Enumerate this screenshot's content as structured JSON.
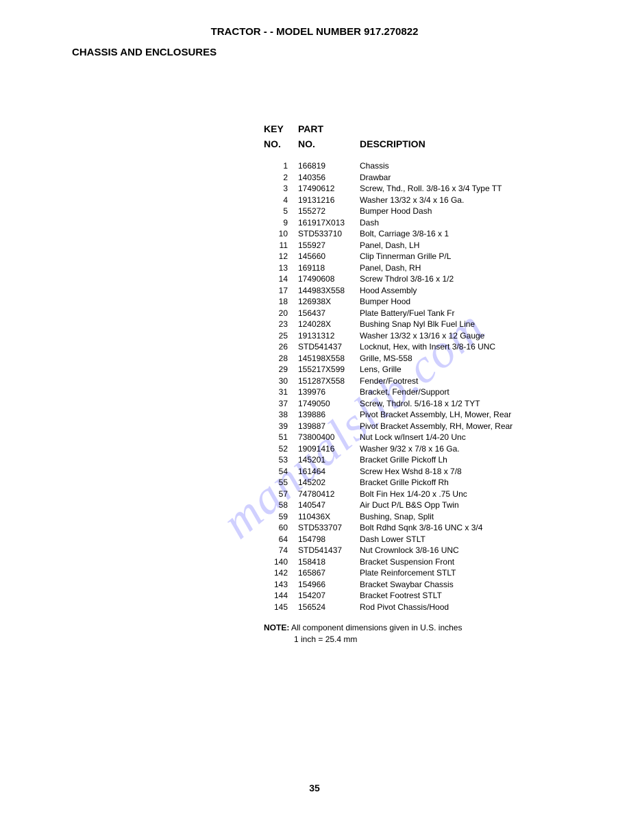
{
  "header": {
    "title": "TRACTOR - - MODEL NUMBER 917.270822",
    "section": "CHASSIS AND ENCLOSURES"
  },
  "table": {
    "headers": {
      "key1": "KEY",
      "key2": "NO.",
      "part1": "PART",
      "part2": "NO.",
      "desc": "DESCRIPTION"
    },
    "rows": [
      {
        "key": "1",
        "part": "166819",
        "desc": "Chassis"
      },
      {
        "key": "2",
        "part": "140356",
        "desc": "Drawbar"
      },
      {
        "key": "3",
        "part": "17490612",
        "desc": "Screw, Thd., Roll. 3/8-16 x 3/4 Type TT"
      },
      {
        "key": "4",
        "part": "19131216",
        "desc": "Washer 13/32 x 3/4 x 16 Ga."
      },
      {
        "key": "5",
        "part": "155272",
        "desc": "Bumper Hood Dash"
      },
      {
        "key": "9",
        "part": "161917X013",
        "desc": "Dash"
      },
      {
        "key": "10",
        "part": "STD533710",
        "desc": "Bolt, Carriage 3/8-16 x 1"
      },
      {
        "key": "11",
        "part": "155927",
        "desc": "Panel, Dash, LH"
      },
      {
        "key": "12",
        "part": "145660",
        "desc": "Clip Tinnerman Grille P/L"
      },
      {
        "key": "13",
        "part": "169118",
        "desc": "Panel, Dash, RH"
      },
      {
        "key": "14",
        "part": "17490608",
        "desc": "Screw Thdrol 3/8-16 x 1/2"
      },
      {
        "key": "17",
        "part": "144983X558",
        "desc": "Hood Assembly"
      },
      {
        "key": "18",
        "part": "126938X",
        "desc": "Bumper Hood"
      },
      {
        "key": "20",
        "part": "156437",
        "desc": "Plate Battery/Fuel Tank Fr"
      },
      {
        "key": "23",
        "part": "124028X",
        "desc": "Bushing Snap Nyl Blk Fuel Line"
      },
      {
        "key": "25",
        "part": "19131312",
        "desc": "Washer 13/32 x 13/16 x 12 Gauge"
      },
      {
        "key": "26",
        "part": "STD541437",
        "desc": "Locknut, Hex, with Insert 3/8-16 UNC"
      },
      {
        "key": "28",
        "part": "145198X558",
        "desc": "Grille, MS-558"
      },
      {
        "key": "29",
        "part": "155217X599",
        "desc": "Lens, Grille"
      },
      {
        "key": "30",
        "part": "151287X558",
        "desc": "Fender/Footrest"
      },
      {
        "key": "31",
        "part": "139976",
        "desc": "Bracket, Fender/Support"
      },
      {
        "key": "37",
        "part": "1749050",
        "desc": "Screw, Thdrol. 5/16-18 x 1/2 TYT"
      },
      {
        "key": "38",
        "part": "139886",
        "desc": "Pivot Bracket Assembly, LH, Mower, Rear"
      },
      {
        "key": "39",
        "part": "139887",
        "desc": "Pivot Bracket Assembly, RH, Mower, Rear"
      },
      {
        "key": "51",
        "part": "73800400",
        "desc": "Nut Lock w/Insert 1/4-20 Unc"
      },
      {
        "key": "52",
        "part": "19091416",
        "desc": "Washer 9/32 x 7/8 x 16 Ga."
      },
      {
        "key": "53",
        "part": "145201",
        "desc": "Bracket Grille Pickoff Lh"
      },
      {
        "key": "54",
        "part": "161464",
        "desc": "Screw Hex Wshd 8-18 x 7/8"
      },
      {
        "key": "55",
        "part": "145202",
        "desc": "Bracket Grille Pickoff Rh"
      },
      {
        "key": "57",
        "part": "74780412",
        "desc": "Bolt Fin Hex 1/4-20 x .75 Unc"
      },
      {
        "key": "58",
        "part": "140547",
        "desc": "Air Duct P/L B&S Opp Twin"
      },
      {
        "key": "59",
        "part": "110436X",
        "desc": "Bushing, Snap, Split"
      },
      {
        "key": "60",
        "part": "STD533707",
        "desc": "Bolt Rdhd Sqnk 3/8-16 UNC x 3/4"
      },
      {
        "key": "64",
        "part": "154798",
        "desc": "Dash Lower STLT"
      },
      {
        "key": "74",
        "part": "STD541437",
        "desc": "Nut Crownlock 3/8-16 UNC"
      },
      {
        "key": "140",
        "part": "158418",
        "desc": "Bracket Suspension Front"
      },
      {
        "key": "142",
        "part": "165867",
        "desc": "Plate Reinforcement STLT"
      },
      {
        "key": "143",
        "part": "154966",
        "desc": "Bracket Swaybar Chassis"
      },
      {
        "key": "144",
        "part": "154207",
        "desc": "Bracket Footrest STLT"
      },
      {
        "key": "145",
        "part": "156524",
        "desc": "Rod Pivot Chassis/Hood"
      }
    ]
  },
  "note": {
    "label": "NOTE:",
    "line1": "All component dimensions given in U.S. inches",
    "line2": "1 inch = 25.4 mm"
  },
  "pageNumber": "35",
  "watermark": "manualslib.com"
}
